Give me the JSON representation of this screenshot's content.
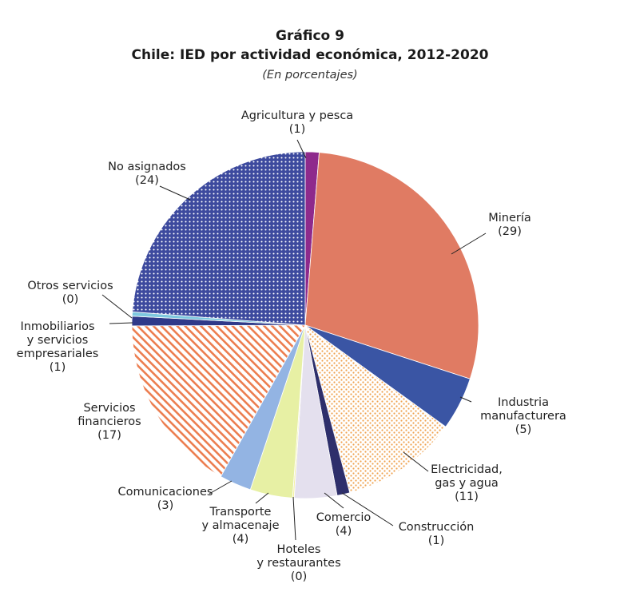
{
  "header": {
    "figure_number": "Gráfico 9",
    "title": "Chile: IED por actividad económica, 2012-2020",
    "subtitle": "(En porcentajes)"
  },
  "chart_data": {
    "type": "pie",
    "title": "Chile: IED por actividad económica, 2012-2020",
    "subtitle": "(En porcentajes)",
    "slices": [
      {
        "key": "agricultura",
        "label_lines": [
          "Agricultura y pesca"
        ],
        "value_label": "(1)",
        "value": 1,
        "color": "#8e2a8c",
        "pattern": "solid"
      },
      {
        "key": "mineria",
        "label_lines": [
          "Minería"
        ],
        "value_label": "(29)",
        "value": 29,
        "color": "#e07b63",
        "pattern": "solid"
      },
      {
        "key": "industria",
        "label_lines": [
          "Industria",
          "manufacturera"
        ],
        "value_label": "(5)",
        "value": 5,
        "color": "#3a55a4",
        "pattern": "solid"
      },
      {
        "key": "electricidad",
        "label_lines": [
          "Electricidad,",
          "gas y agua"
        ],
        "value_label": "(11)",
        "value": 11,
        "color": "#f0a24e",
        "pattern": "dots"
      },
      {
        "key": "construccion",
        "label_lines": [
          "Construcción"
        ],
        "value_label": "(1)",
        "value": 1,
        "color": "#2e2f6b",
        "pattern": "solid"
      },
      {
        "key": "comercio",
        "label_lines": [
          "Comercio"
        ],
        "value_label": "(4)",
        "value": 4,
        "color": "#e4e0ee",
        "pattern": "solid"
      },
      {
        "key": "hoteles",
        "label_lines": [
          "Hoteles",
          "y restaurantes"
        ],
        "value_label": "(0)",
        "value": 0,
        "color": "#f3f0a0",
        "pattern": "solid"
      },
      {
        "key": "transporte",
        "label_lines": [
          "Transporte",
          "y almacenaje"
        ],
        "value_label": "(4)",
        "value": 4,
        "color": "#e7f0a4",
        "pattern": "solid"
      },
      {
        "key": "comunicaciones",
        "label_lines": [
          "Comunicaciones"
        ],
        "value_label": "(3)",
        "value": 3,
        "color": "#93b4e3",
        "pattern": "solid"
      },
      {
        "key": "servicios_financieros",
        "label_lines": [
          "Servicios",
          "financieros"
        ],
        "value_label": "(17)",
        "value": 17,
        "color": "#ec7d4f",
        "pattern": "stripes"
      },
      {
        "key": "inmobiliarios",
        "label_lines": [
          "Inmobiliarios",
          "y servicios",
          "empresariales"
        ],
        "value_label": "(1)",
        "value": 1,
        "color": "#2f3a8a",
        "pattern": "solid"
      },
      {
        "key": "otros",
        "label_lines": [
          "Otros servicios"
        ],
        "value_label": "(0)",
        "value": 0,
        "color": "#7ec8df",
        "pattern": "solid"
      },
      {
        "key": "no_asignados",
        "label_lines": [
          "No asignados"
        ],
        "value_label": "(24)",
        "value": 24,
        "color": "#3d4a9e",
        "pattern": "grid"
      }
    ]
  }
}
